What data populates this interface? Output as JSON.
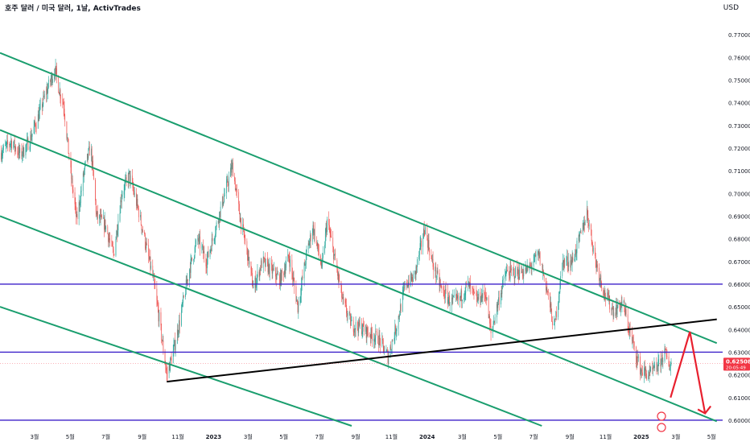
{
  "header": {
    "title": "호주 달러 / 미국 달러, 1날, ActivTrades",
    "currency": "USD"
  },
  "colors": {
    "up_candle": "#26a69a",
    "down_candle": "#ef5350",
    "channel_lines": "#1a9e6e",
    "horizontal_levels": "#3d22c9",
    "trend_line": "#000000",
    "projection_arrow": "#e8202e",
    "price_tag": "#f23645"
  },
  "price_tag": {
    "price": "0.62508",
    "countdown": "20:05:49"
  },
  "chart_data": {
    "type": "candlestick",
    "title": "호주 달러 / 미국 달러, 1날, ActivTrades",
    "y_axis_ticks": [
      "0.77000",
      "0.76000",
      "0.75000",
      "0.74000",
      "0.73000",
      "0.72000",
      "0.71000",
      "0.70000",
      "0.69000",
      "0.68000",
      "0.67000",
      "0.66000",
      "0.65000",
      "0.64000",
      "0.63000",
      "0.62000",
      "0.61000",
      "0.60000"
    ],
    "ylim": [
      0.5975,
      0.7775
    ],
    "x_axis_ticks": [
      {
        "label": "3월",
        "date": "2022-03-01"
      },
      {
        "label": "5월",
        "date": "2022-05-01"
      },
      {
        "label": "7월",
        "date": "2022-07-01"
      },
      {
        "label": "9월",
        "date": "2022-09-01"
      },
      {
        "label": "11월",
        "date": "2022-11-01"
      },
      {
        "label": "2023",
        "date": "2023-01-01"
      },
      {
        "label": "3월",
        "date": "2023-03-01"
      },
      {
        "label": "5월",
        "date": "2023-05-01"
      },
      {
        "label": "7월",
        "date": "2023-07-01"
      },
      {
        "label": "9월",
        "date": "2023-09-01"
      },
      {
        "label": "11월",
        "date": "2023-11-01"
      },
      {
        "label": "2024",
        "date": "2024-01-01"
      },
      {
        "label": "3월",
        "date": "2024-03-01"
      },
      {
        "label": "5월",
        "date": "2024-05-01"
      },
      {
        "label": "7월",
        "date": "2024-07-01"
      },
      {
        "label": "9월",
        "date": "2024-09-01"
      },
      {
        "label": "11월",
        "date": "2024-11-01"
      },
      {
        "label": "2025",
        "date": "2025-01-01"
      },
      {
        "label": "3월",
        "date": "2025-03-01"
      },
      {
        "label": "5월",
        "date": "2025-05-01"
      }
    ],
    "series": [
      {
        "values": [
          [
            "2022-01-03",
            0.718
          ],
          [
            "2022-01-20",
            0.723
          ],
          [
            "2022-02-05",
            0.717
          ],
          [
            "2022-02-20",
            0.723
          ],
          [
            "2022-03-05",
            0.732
          ],
          [
            "2022-03-20",
            0.744
          ],
          [
            "2022-04-05",
            0.755
          ],
          [
            "2022-04-12",
            0.746
          ],
          [
            "2022-04-20",
            0.739
          ],
          [
            "2022-05-01",
            0.711
          ],
          [
            "2022-05-12",
            0.688
          ],
          [
            "2022-05-25",
            0.71
          ],
          [
            "2022-06-05",
            0.721
          ],
          [
            "2022-06-15",
            0.69
          ],
          [
            "2022-06-30",
            0.686
          ],
          [
            "2022-07-14",
            0.673
          ],
          [
            "2022-07-28",
            0.7
          ],
          [
            "2022-08-10",
            0.708
          ],
          [
            "2022-08-25",
            0.693
          ],
          [
            "2022-09-05",
            0.68
          ],
          [
            "2022-09-20",
            0.662
          ],
          [
            "2022-10-01",
            0.643
          ],
          [
            "2022-10-13",
            0.62
          ],
          [
            "2022-10-24",
            0.63
          ],
          [
            "2022-11-05",
            0.645
          ],
          [
            "2022-11-20",
            0.666
          ],
          [
            "2022-12-05",
            0.68
          ],
          [
            "2022-12-20",
            0.67
          ],
          [
            "2023-01-05",
            0.685
          ],
          [
            "2023-01-20",
            0.7
          ],
          [
            "2023-02-02",
            0.712
          ],
          [
            "2023-02-15",
            0.69
          ],
          [
            "2023-03-01",
            0.672
          ],
          [
            "2023-03-10",
            0.658
          ],
          [
            "2023-03-25",
            0.67
          ],
          [
            "2023-04-10",
            0.666
          ],
          [
            "2023-04-25",
            0.662
          ],
          [
            "2023-05-10",
            0.672
          ],
          [
            "2023-05-25",
            0.65
          ],
          [
            "2023-06-10",
            0.675
          ],
          [
            "2023-06-20",
            0.685
          ],
          [
            "2023-07-05",
            0.667
          ],
          [
            "2023-07-14",
            0.688
          ],
          [
            "2023-07-28",
            0.67
          ],
          [
            "2023-08-10",
            0.652
          ],
          [
            "2023-08-25",
            0.642
          ],
          [
            "2023-09-10",
            0.641
          ],
          [
            "2023-09-25",
            0.638
          ],
          [
            "2023-10-10",
            0.636
          ],
          [
            "2023-10-26",
            0.628
          ],
          [
            "2023-11-10",
            0.642
          ],
          [
            "2023-11-25",
            0.66
          ],
          [
            "2023-12-10",
            0.663
          ],
          [
            "2023-12-28",
            0.685
          ],
          [
            "2024-01-10",
            0.669
          ],
          [
            "2024-01-25",
            0.658
          ],
          [
            "2024-02-10",
            0.652
          ],
          [
            "2024-02-25",
            0.653
          ],
          [
            "2024-03-10",
            0.66
          ],
          [
            "2024-03-25",
            0.653
          ],
          [
            "2024-04-10",
            0.656
          ],
          [
            "2024-04-19",
            0.638
          ],
          [
            "2024-05-01",
            0.652
          ],
          [
            "2024-05-15",
            0.665
          ],
          [
            "2024-06-01",
            0.665
          ],
          [
            "2024-06-20",
            0.666
          ],
          [
            "2024-07-10",
            0.673
          ],
          [
            "2024-07-25",
            0.656
          ],
          [
            "2024-08-05",
            0.64
          ],
          [
            "2024-08-20",
            0.67
          ],
          [
            "2024-09-05",
            0.67
          ],
          [
            "2024-09-20",
            0.682
          ],
          [
            "2024-09-30",
            0.692
          ],
          [
            "2024-10-15",
            0.67
          ],
          [
            "2024-10-30",
            0.656
          ],
          [
            "2024-11-15",
            0.648
          ],
          [
            "2024-11-30",
            0.652
          ],
          [
            "2024-12-15",
            0.636
          ],
          [
            "2024-12-31",
            0.622
          ],
          [
            "2025-01-15",
            0.62
          ],
          [
            "2025-01-30",
            0.624
          ],
          [
            "2025-02-10",
            0.63
          ],
          [
            "2025-02-18",
            0.624
          ],
          [
            "2025-02-21",
            0.6251
          ]
        ]
      }
    ],
    "trend_lines": [
      {
        "kind": "channel",
        "from": [
          "2022-01-01",
          0.762
        ],
        "to": [
          "2025-05-10",
          0.634
        ]
      },
      {
        "kind": "channel",
        "from": [
          "2022-01-01",
          0.728
        ],
        "to": [
          "2025-05-10",
          0.5995
        ]
      },
      {
        "kind": "channel",
        "from": [
          "2022-01-01",
          0.69
        ],
        "to": [
          "2024-07-15",
          0.5975
        ]
      },
      {
        "kind": "channel",
        "from": [
          "2022-01-01",
          0.65
        ],
        "to": [
          "2023-08-25",
          0.5975
        ]
      },
      {
        "kind": "support",
        "from": [
          "2022-10-13",
          0.617
        ],
        "to": [
          "2025-05-10",
          0.6445
        ]
      }
    ],
    "horizontal_levels": [
      0.66,
      0.63,
      0.6
    ],
    "projection": {
      "points": [
        [
          "2025-02-20",
          0.61
        ],
        [
          "2025-03-25",
          0.639
        ],
        [
          "2025-04-20",
          0.603
        ]
      ]
    },
    "last_price": 0.62508
  }
}
